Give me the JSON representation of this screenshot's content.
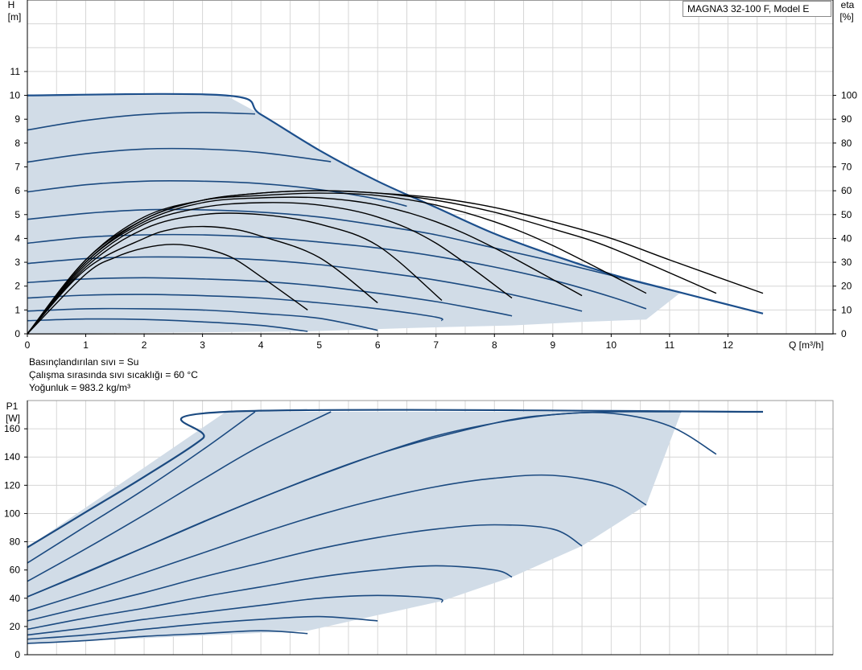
{
  "model_label": "MAGNA3 32-100 F, Model E",
  "conditions": {
    "fluid": "Basınçlandırılan sıvı = Su",
    "temperature": "Çalışma sırasında sıvı sıcaklığı = 60 °C",
    "density": "Yoğunluk = 983.2 kg/m³"
  },
  "colors": {
    "curve": "#1b4a80",
    "envelope": "#1c4f8c",
    "efficiency": "#000000",
    "fill": "#d1dce7",
    "grid": "#d6d6d6",
    "axis": "#000000"
  },
  "chart_data": [
    {
      "type": "line",
      "title": "",
      "xlabel": "Q [m³/h]",
      "ylabel_top": "H",
      "ylabel_bottom": "[m]",
      "y2label_top": "eta",
      "y2label_bottom": "[%]",
      "xlim": [
        0,
        13.8
      ],
      "ylim": [
        0,
        14
      ],
      "y2lim": [
        0,
        140
      ],
      "x_ticks": [
        "0",
        "1",
        "2",
        "3",
        "4",
        "5",
        "6",
        "7",
        "8",
        "9",
        "10",
        "11",
        "12"
      ],
      "y_ticks": [
        "0",
        "1",
        "2",
        "3",
        "4",
        "5",
        "6",
        "7",
        "8",
        "9",
        "10",
        "11"
      ],
      "y2_ticks": [
        "0",
        "10",
        "20",
        "30",
        "40",
        "50",
        "60",
        "70",
        "80",
        "90",
        "100"
      ],
      "grid": true,
      "operating_area": [
        [
          0,
          10
        ],
        [
          3.4,
          10
        ],
        [
          4,
          9.2
        ],
        [
          5,
          7.7
        ],
        [
          6,
          6.4
        ],
        [
          7,
          5.3
        ],
        [
          8,
          4.2
        ],
        [
          9,
          3.3
        ],
        [
          10,
          2.5
        ],
        [
          11.2,
          1.75
        ],
        [
          10.6,
          0.6
        ],
        [
          9.5,
          0.5
        ],
        [
          8.3,
          0.35
        ],
        [
          7.1,
          0.28
        ],
        [
          6,
          0.2
        ],
        [
          4.8,
          0.1
        ],
        [
          0,
          0
        ]
      ],
      "series": [
        {
          "kind": "head",
          "x": [
            0,
            1,
            2,
            3,
            3.9
          ],
          "y": [
            8.55,
            8.95,
            9.2,
            9.28,
            9.22
          ]
        },
        {
          "kind": "head",
          "x": [
            0,
            1,
            2,
            3,
            4,
            5.2
          ],
          "y": [
            7.2,
            7.55,
            7.75,
            7.75,
            7.6,
            7.22
          ]
        },
        {
          "kind": "head",
          "x": [
            0,
            1,
            2,
            3,
            4,
            5,
            6,
            6.5
          ],
          "y": [
            5.95,
            6.25,
            6.4,
            6.4,
            6.3,
            6.05,
            5.65,
            5.35
          ]
        },
        {
          "kind": "head",
          "x": [
            0,
            1,
            2,
            3,
            4,
            5,
            6,
            7,
            8,
            9,
            10,
            11.2
          ],
          "y": [
            4.8,
            5.05,
            5.2,
            5.2,
            5.1,
            4.9,
            4.55,
            4.15,
            3.6,
            3.05,
            2.45,
            1.72
          ]
        },
        {
          "kind": "head",
          "x": [
            0,
            1,
            2,
            3,
            4,
            5,
            6,
            7,
            8,
            9,
            10,
            10.6
          ],
          "y": [
            3.8,
            4.05,
            4.15,
            4.15,
            4.05,
            3.85,
            3.6,
            3.25,
            2.8,
            2.25,
            1.55,
            1.05
          ]
        },
        {
          "kind": "head",
          "x": [
            0,
            1,
            2,
            3,
            4,
            5,
            6,
            7,
            8,
            9,
            9.5
          ],
          "y": [
            2.95,
            3.15,
            3.22,
            3.2,
            3.1,
            2.9,
            2.6,
            2.25,
            1.8,
            1.25,
            0.95
          ]
        },
        {
          "kind": "head",
          "x": [
            0,
            1,
            2,
            3,
            4,
            5,
            6,
            7,
            8,
            8.3
          ],
          "y": [
            2.15,
            2.3,
            2.35,
            2.3,
            2.2,
            2.0,
            1.7,
            1.35,
            0.9,
            0.75
          ]
        },
        {
          "kind": "head",
          "x": [
            0,
            1,
            2,
            3,
            4,
            5,
            6,
            7,
            7.1
          ],
          "y": [
            1.5,
            1.62,
            1.65,
            1.6,
            1.5,
            1.3,
            1.05,
            0.7,
            0.55
          ]
        },
        {
          "kind": "head",
          "x": [
            0,
            1,
            2,
            3,
            4,
            5,
            6
          ],
          "y": [
            0.95,
            1.05,
            1.05,
            1.0,
            0.85,
            0.65,
            0.15
          ]
        },
        {
          "kind": "head",
          "x": [
            0,
            1,
            2,
            3,
            4,
            4.8
          ],
          "y": [
            0.55,
            0.62,
            0.6,
            0.5,
            0.35,
            0.1
          ]
        },
        {
          "kind": "envelope",
          "x": [
            0,
            3.4,
            4,
            5,
            6,
            7,
            8,
            9,
            10,
            11,
            12.6
          ],
          "y": [
            10,
            10,
            9.2,
            7.7,
            6.4,
            5.3,
            4.2,
            3.3,
            2.5,
            1.85,
            0.85
          ]
        },
        {
          "kind": "eta",
          "x": [
            0,
            1,
            1.5,
            2,
            2.5,
            3,
            3.5,
            4,
            4.8
          ],
          "y": [
            0,
            25,
            32,
            36,
            37.5,
            36,
            32,
            24,
            10
          ]
        },
        {
          "kind": "eta",
          "x": [
            0,
            1,
            2,
            2.5,
            3,
            3.5,
            4,
            5,
            6
          ],
          "y": [
            0,
            27,
            40,
            44,
            45,
            44,
            41,
            32,
            13
          ]
        },
        {
          "kind": "eta",
          "x": [
            0,
            1,
            2,
            3,
            4,
            5,
            6,
            7.1
          ],
          "y": [
            0,
            28,
            44,
            50,
            50,
            46,
            37,
            14
          ]
        },
        {
          "kind": "eta",
          "x": [
            0,
            1,
            2,
            3,
            4,
            5,
            6,
            7,
            8.3
          ],
          "y": [
            0,
            29,
            46,
            53,
            55,
            54,
            49,
            38,
            15
          ]
        },
        {
          "kind": "eta",
          "x": [
            0,
            1,
            2,
            3,
            4,
            5,
            6,
            7,
            8,
            9.5
          ],
          "y": [
            0,
            30,
            47,
            55,
            57,
            57,
            54,
            47,
            36,
            16
          ]
        },
        {
          "kind": "eta",
          "x": [
            0,
            1,
            2,
            3,
            4,
            5,
            6,
            7,
            8,
            9,
            10.6
          ],
          "y": [
            0,
            30,
            48,
            56,
            58,
            59,
            58,
            54,
            47,
            37,
            17
          ]
        },
        {
          "kind": "eta",
          "x": [
            0,
            1,
            2,
            3,
            4,
            5,
            6,
            7,
            8,
            9,
            10,
            11.8
          ],
          "y": [
            0,
            31,
            48,
            56,
            59,
            60,
            59,
            56,
            51,
            44,
            36,
            17
          ]
        },
        {
          "kind": "eta",
          "x": [
            0,
            1,
            2,
            3,
            4,
            5,
            6,
            7,
            8,
            9,
            10,
            11,
            12.6
          ],
          "y": [
            0,
            31,
            49,
            56,
            59,
            60,
            59,
            57,
            53,
            47,
            40,
            31,
            17
          ]
        }
      ]
    },
    {
      "type": "line",
      "title": "",
      "xlabel": "",
      "ylabel_top": "P1",
      "ylabel_bottom": "[W]",
      "xlim": [
        0,
        13.8
      ],
      "ylim": [
        0,
        180
      ],
      "y_ticks": [
        "0",
        "20",
        "40",
        "60",
        "80",
        "100",
        "120",
        "140",
        "160"
      ],
      "grid": true,
      "operating_area": [
        [
          0,
          76
        ],
        [
          3.4,
          172
        ],
        [
          11.2,
          172
        ],
        [
          10.6,
          106
        ],
        [
          9.5,
          77
        ],
        [
          8.3,
          55
        ],
        [
          7.1,
          38
        ],
        [
          6,
          28
        ],
        [
          4.8,
          17
        ],
        [
          0,
          8
        ]
      ],
      "series": [
        {
          "kind": "power",
          "x": [
            0,
            1,
            2,
            3,
            3.4,
            12.6
          ],
          "y": [
            76,
            101,
            126,
            153,
            172,
            172
          ]
        },
        {
          "kind": "power",
          "x": [
            0,
            1,
            2,
            3,
            3.9
          ],
          "y": [
            65,
            91,
            117,
            145,
            172
          ]
        },
        {
          "kind": "power",
          "x": [
            0,
            1,
            2,
            3,
            4,
            5.2
          ],
          "y": [
            52,
            75,
            99,
            124,
            148,
            172
          ]
        },
        {
          "kind": "power",
          "x": [
            0,
            1,
            2,
            3,
            4,
            5,
            6,
            7,
            8,
            9,
            10,
            11.2
          ],
          "y": [
            41,
            58,
            76,
            94,
            111,
            127,
            142,
            155,
            164,
            170,
            172,
            172
          ]
        },
        {
          "kind": "power",
          "x": [
            0,
            2,
            4,
            6,
            8,
            9,
            10,
            11,
            11.8
          ],
          "y": [
            41,
            76,
            111,
            142,
            164,
            170,
            171,
            162,
            142
          ]
        },
        {
          "kind": "power",
          "x": [
            0,
            1,
            2,
            3,
            4,
            5,
            6,
            7,
            8,
            9,
            10,
            10.6
          ],
          "y": [
            31,
            44,
            58,
            72,
            86,
            99,
            110,
            119,
            125,
            127,
            120,
            106
          ]
        },
        {
          "kind": "power",
          "x": [
            0,
            1,
            2,
            3,
            4,
            5,
            6,
            7,
            8,
            9,
            9.5
          ],
          "y": [
            24,
            34,
            44,
            55,
            65,
            75,
            83,
            89,
            92,
            89,
            77
          ]
        },
        {
          "kind": "power",
          "x": [
            0,
            1,
            2,
            3,
            4,
            5,
            6,
            7,
            8,
            8.3
          ],
          "y": [
            18,
            26,
            33,
            41,
            48,
            55,
            60,
            63,
            60,
            55
          ]
        },
        {
          "kind": "power",
          "x": [
            0,
            1,
            2,
            3,
            4,
            5,
            6,
            7,
            7.1
          ],
          "y": [
            14,
            19,
            25,
            30,
            35,
            40,
            42,
            40,
            37
          ]
        },
        {
          "kind": "power",
          "x": [
            0,
            1,
            2,
            3,
            4,
            5,
            6
          ],
          "y": [
            11,
            14,
            18,
            22,
            25,
            27,
            24
          ]
        },
        {
          "kind": "power",
          "x": [
            0,
            1,
            2,
            3,
            4,
            4.8
          ],
          "y": [
            8,
            10,
            13,
            15,
            17,
            15
          ]
        }
      ]
    }
  ]
}
